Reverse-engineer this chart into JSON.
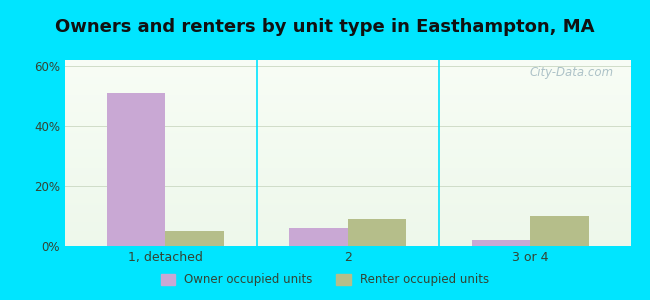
{
  "title": "Owners and renters by unit type in Easthampton, MA",
  "categories": [
    "1, detached",
    "2",
    "3 or 4"
  ],
  "owner_values": [
    51,
    6,
    2
  ],
  "renter_values": [
    5,
    9,
    10
  ],
  "owner_color": "#c9a8d4",
  "renter_color": "#b5be8a",
  "bar_width": 0.32,
  "ylim": [
    0,
    62
  ],
  "yticks": [
    0,
    20,
    40,
    60
  ],
  "ytick_labels": [
    "0%",
    "20%",
    "40%",
    "60%"
  ],
  "outer_bg": "#00e5ff",
  "grid_color": "#d0ddc8",
  "title_fontsize": 13,
  "legend_owner": "Owner occupied units",
  "legend_renter": "Renter occupied units",
  "watermark": "City-Data.com"
}
